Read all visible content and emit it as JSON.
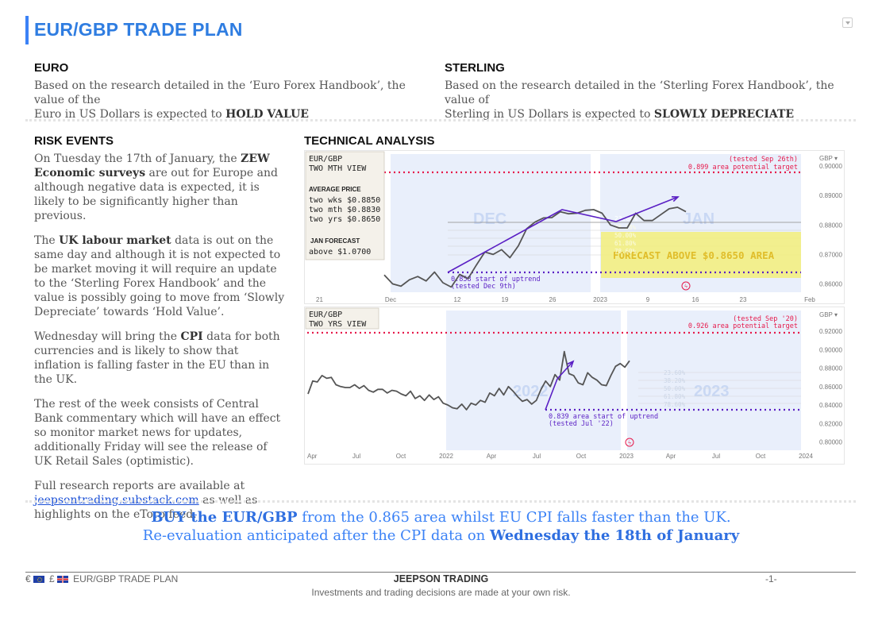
{
  "header": {
    "title": "EUR/GBP TRADE PLAN"
  },
  "euro": {
    "heading": "EURO",
    "line1": "Based on the research detailed in the ‘Euro Forex Handbook’, the value of the",
    "line2_prefix": "Euro in US Dollars is expected to ",
    "outlook": "HOLD VALUE"
  },
  "sterling": {
    "heading": "STERLING",
    "line1": "Based on the research detailed in the ‘Sterling Forex Handbook’, the value of",
    "line2_prefix": "Sterling in US Dollars is expected to ",
    "outlook": "SLOWLY DEPRECIATE"
  },
  "risk": {
    "heading": "RISK EVENTS",
    "p1_a": "On Tuesday the 17th of January, the ",
    "p1_b": "ZEW Economic surveys",
    "p1_c": " are out for Europe and although negative data is expected, it is likely to be significantly higher than previous.",
    "p2_a": "The ",
    "p2_b": "UK labour market",
    "p2_c": " data is out on the same day and although it is not expected to be market moving it will require an update to the ‘Sterling Forex Handbook’ and the value is possibly going to move from ‘Slowly Depreciate’ towards ‘Hold Value’.",
    "p3_a": "Wednesday will bring the ",
    "p3_b": "CPI",
    "p3_c": " data for both currencies and is likely to show that inflation is falling faster in the EU than in the UK.",
    "p4": "The rest of the week consists of Central Bank commentary which will have an effect so monitor market news for updates, additionally Friday will see the release of UK Retail Sales (optimistic).",
    "p5_a": "Full research reports are available at ",
    "p5_link": "jeepsontrading.substack.com",
    "p5_c": " as well as highlights on the eToro feed."
  },
  "technical": {
    "heading": "TECHNICAL ANALYSIS"
  },
  "chart_data": [
    {
      "type": "line",
      "title": "EUR/GBP TWO MTH VIEW",
      "currency_label": "GBP",
      "bg_labels": [
        "DEC",
        "JAN"
      ],
      "x_ticks": [
        "21",
        "Dec",
        "12",
        "19",
        "26",
        "2023",
        "9",
        "16",
        "23",
        "Feb"
      ],
      "y_ticks": [
        "0.90000",
        "0.89000",
        "0.88000",
        "0.87000",
        "0.86000"
      ],
      "ylim": [
        0.855,
        0.903
      ],
      "series": [
        {
          "name": "EUR/GBP",
          "values": [
            0.863,
            0.86,
            0.8592,
            0.8614,
            0.8625,
            0.861,
            0.864,
            0.8604,
            0.8589,
            0.8632,
            0.8618,
            0.8664,
            0.8708,
            0.87,
            0.8716,
            0.8689,
            0.8729,
            0.8787,
            0.881,
            0.8824,
            0.8825,
            0.8845,
            0.8838,
            0.884,
            0.885,
            0.8852,
            0.884,
            0.88,
            0.879,
            0.879,
            0.884,
            0.8815,
            0.8815,
            0.8835,
            0.8855,
            0.886,
            0.8845
          ]
        }
      ],
      "annotations": {
        "avg_heading": "AVERAGE PRICE",
        "avg_wks": "two wks $0.8850",
        "avg_mth": "two mth $0.8830",
        "avg_yrs": "two yrs $0.8650",
        "jan_heading": "JAN FORECAST",
        "jan_value": "above $1.0700",
        "target_tested": "(tested Sep 26th)",
        "target_label": "0.899 area potential target",
        "support_label": "0.858 start of uptrend",
        "support_tested": "(tested Dec 9th)",
        "fib_top": "23.60%",
        "fib_levels": [
          "38.20%",
          "50.00%",
          "61.80%",
          "78.60%"
        ],
        "forecast_box": "FORECAST ABOVE $0.8650 AREA"
      }
    },
    {
      "type": "line",
      "title": "EUR/GBP TWO YRS VIEW",
      "currency_label": "GBP",
      "bg_labels": [
        "2022",
        "2023"
      ],
      "x_ticks": [
        "Apr",
        "Jul",
        "Oct",
        "2022",
        "Apr",
        "Jul",
        "Oct",
        "2023",
        "Apr",
        "Jul",
        "Oct",
        "2024"
      ],
      "y_ticks": [
        "0.92000",
        "0.90000",
        "0.88000",
        "0.86000",
        "0.84000",
        "0.82000",
        "0.80000"
      ],
      "ylim": [
        0.797,
        0.933
      ],
      "series": [
        {
          "name": "EUR/GBP",
          "values": [
            0.852,
            0.866,
            0.865,
            0.872,
            0.869,
            0.87,
            0.862,
            0.86,
            0.859,
            0.859,
            0.862,
            0.858,
            0.861,
            0.856,
            0.854,
            0.857,
            0.857,
            0.853,
            0.856,
            0.855,
            0.852,
            0.85,
            0.855,
            0.847,
            0.85,
            0.845,
            0.851,
            0.846,
            0.849,
            0.842,
            0.84,
            0.837,
            0.836,
            0.841,
            0.835,
            0.842,
            0.84,
            0.845,
            0.843,
            0.853,
            0.85,
            0.858,
            0.851,
            0.86,
            0.855,
            0.849,
            0.844,
            0.846,
            0.841,
            0.845,
            0.857,
            0.866,
            0.86,
            0.873,
            0.867,
            0.898,
            0.874,
            0.872,
            0.864,
            0.862,
            0.875,
            0.87,
            0.867,
            0.862,
            0.861,
            0.872,
            0.882,
            0.885,
            0.881,
            0.888
          ]
        }
      ],
      "annotations": {
        "target_tested": "(tested Sep '20)",
        "target_label": "0.926 area potential target",
        "support_label": "0.839 area start of uptrend",
        "support_tested": "(tested Jul '22)",
        "fib_levels": [
          "23.60%",
          "38.20%",
          "50.00%",
          "61.80%",
          "78.60%"
        ]
      }
    }
  ],
  "cta": {
    "l1_a": "BUY the EUR/GBP",
    "l1_b": " from the 0.865 area whilst EU CPI falls faster than the UK.",
    "l2_a": "Re-evaluation anticipated after the CPI data on ",
    "l2_b": "Wednesday the 18th of January"
  },
  "footer": {
    "euro_symbol": "€",
    "pound_symbol": "£",
    "plan_label": "EUR/GBP TRADE PLAN",
    "brand": "JEEPSON TRADING",
    "page": "-1-",
    "disclaimer": "Investments and trading decisions are made at your own risk."
  },
  "colors": {
    "accent": "#2f7de1",
    "target": "#e6194b",
    "trend": "#5a1fc4",
    "forecast": "#f3ee7a"
  }
}
